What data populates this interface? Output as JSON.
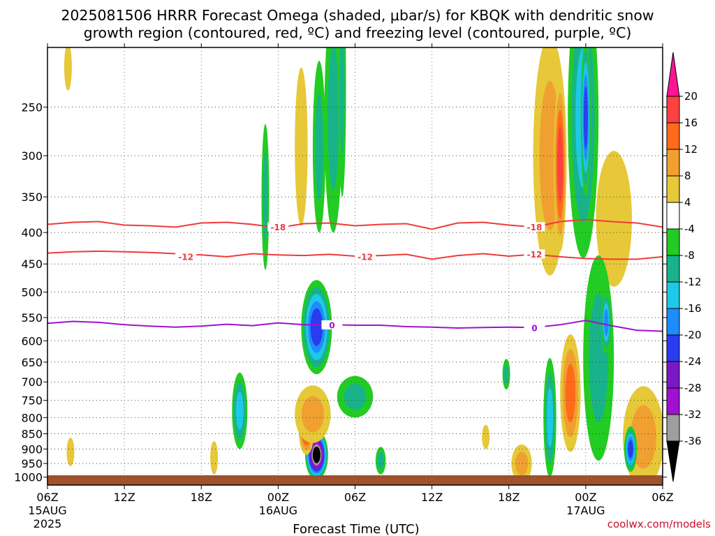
{
  "title": {
    "line1": "2025081506 HRRR Forecast Omega (shaded, μbar/s) for KBQK with dendritic snow",
    "line2": "growth region (contoured, red, ºC) and freezing level (contoured, purple, ºC)"
  },
  "credit": "coolwx.com/models",
  "chart_data": {
    "type": "heatmap",
    "x": {
      "label": "Forecast Time (UTC)",
      "range_hours": [
        0,
        48
      ],
      "ticks": [
        {
          "hour": 0,
          "label": "06Z",
          "date": "15AUG",
          "year": "2025"
        },
        {
          "hour": 6,
          "label": "12Z"
        },
        {
          "hour": 12,
          "label": "18Z"
        },
        {
          "hour": 18,
          "label": "00Z",
          "date": "16AUG"
        },
        {
          "hour": 24,
          "label": "06Z"
        },
        {
          "hour": 30,
          "label": "12Z"
        },
        {
          "hour": 36,
          "label": "18Z"
        },
        {
          "hour": 42,
          "label": "00Z",
          "date": "17AUG"
        },
        {
          "hour": 48,
          "label": "06Z"
        }
      ]
    },
    "y": {
      "label": "",
      "units": "hPa",
      "scale": "log",
      "range": [
        1030,
        200
      ],
      "ticks": [
        250,
        300,
        350,
        400,
        450,
        500,
        550,
        600,
        650,
        700,
        750,
        800,
        850,
        900,
        950,
        1000
      ]
    },
    "grid": true,
    "surface_ground_color": "#a0522d",
    "colorbar": {
      "labels": [
        "20",
        "16",
        "12",
        "8",
        "4",
        "-4",
        "-8",
        "-12",
        "-16",
        "-20",
        "-24",
        "-28",
        "-32",
        "-36"
      ],
      "colors": [
        "#ff1493",
        "#ff4040",
        "#ff6b1a",
        "#f0a030",
        "#e6c838",
        "#ffffff",
        "#22cc22",
        "#18b38a",
        "#1ec8e8",
        "#1e8cff",
        "#2a3cf0",
        "#7a18c8",
        "#a010d0",
        "#9e9e9e",
        "#000000"
      ]
    },
    "contours": [
      {
        "name": "-18",
        "color": "#ee3b3b",
        "points": [
          [
            0,
            388
          ],
          [
            2,
            385
          ],
          [
            4,
            384
          ],
          [
            6,
            389
          ],
          [
            8,
            390
          ],
          [
            10,
            392
          ],
          [
            12,
            386
          ],
          [
            14,
            385
          ],
          [
            16,
            388
          ],
          [
            18,
            393
          ],
          [
            20,
            387
          ],
          [
            22,
            386
          ],
          [
            24,
            390
          ],
          [
            26,
            388
          ],
          [
            28,
            387
          ],
          [
            30,
            395
          ],
          [
            32,
            386
          ],
          [
            34,
            385
          ],
          [
            36,
            389
          ],
          [
            38,
            392
          ],
          [
            40,
            384
          ],
          [
            42,
            381
          ],
          [
            44,
            384
          ],
          [
            46,
            386
          ],
          [
            48,
            392
          ]
        ],
        "labels": [
          {
            "hour": 18.0,
            "p": 392
          },
          {
            "hour": 38.0,
            "p": 392
          }
        ]
      },
      {
        "name": "-12",
        "color": "#ee3b3b",
        "points": [
          [
            0,
            432
          ],
          [
            2,
            430
          ],
          [
            4,
            429
          ],
          [
            6,
            430
          ],
          [
            8,
            431
          ],
          [
            10,
            433
          ],
          [
            12,
            435
          ],
          [
            14,
            438
          ],
          [
            16,
            433
          ],
          [
            18,
            435
          ],
          [
            20,
            436
          ],
          [
            22,
            434
          ],
          [
            24,
            437
          ],
          [
            26,
            436
          ],
          [
            28,
            434
          ],
          [
            30,
            442
          ],
          [
            32,
            436
          ],
          [
            34,
            433
          ],
          [
            36,
            437
          ],
          [
            38,
            434
          ],
          [
            40,
            438
          ],
          [
            42,
            441
          ],
          [
            44,
            442
          ],
          [
            46,
            442
          ],
          [
            48,
            438
          ]
        ],
        "labels": [
          {
            "hour": 10.8,
            "p": 438
          },
          {
            "hour": 24.8,
            "p": 438
          },
          {
            "hour": 38.0,
            "p": 434
          }
        ]
      },
      {
        "name": "0",
        "color": "#a010d0",
        "points": [
          [
            0,
            562
          ],
          [
            2,
            558
          ],
          [
            4,
            560
          ],
          [
            6,
            565
          ],
          [
            8,
            568
          ],
          [
            10,
            570
          ],
          [
            12,
            568
          ],
          [
            14,
            564
          ],
          [
            16,
            567
          ],
          [
            18,
            561
          ],
          [
            20,
            565
          ],
          [
            22,
            565
          ],
          [
            24,
            566
          ],
          [
            26,
            566
          ],
          [
            28,
            569
          ],
          [
            30,
            570
          ],
          [
            32,
            572
          ],
          [
            34,
            571
          ],
          [
            36,
            570
          ],
          [
            38,
            571
          ],
          [
            40,
            565
          ],
          [
            42,
            556
          ],
          [
            44,
            567
          ],
          [
            46,
            577
          ],
          [
            48,
            579
          ]
        ],
        "labels": [
          {
            "hour": 22.2,
            "p": 566
          },
          {
            "hour": 38.0,
            "p": 572
          }
        ]
      }
    ],
    "omega_features": [
      {
        "hour": 21.0,
        "p": 920,
        "rh": 0.9,
        "rp": 90,
        "value": -36
      },
      {
        "hour": 21.0,
        "p": 570,
        "rh": 1.2,
        "rp": 110,
        "value": -20
      },
      {
        "hour": 20.2,
        "p": 840,
        "rh": 0.6,
        "rp": 80,
        "value": 16
      },
      {
        "hour": 20.7,
        "p": 790,
        "rh": 1.4,
        "rp": 90,
        "value": 8
      },
      {
        "hour": 22.3,
        "p": 260,
        "rh": 0.7,
        "rp": 140,
        "value": -8
      },
      {
        "hour": 19.8,
        "p": 290,
        "rh": 0.5,
        "rp": 100,
        "value": 4
      },
      {
        "hour": 17.0,
        "p": 350,
        "rh": 0.3,
        "rp": 110,
        "value": -8
      },
      {
        "hour": 24.0,
        "p": 740,
        "rh": 1.4,
        "rp": 60,
        "value": -8
      },
      {
        "hour": 21.2,
        "p": 290,
        "rh": 0.5,
        "rp": 110,
        "value": -8
      },
      {
        "hour": 15.0,
        "p": 780,
        "rh": 0.6,
        "rp": 120,
        "value": -12
      },
      {
        "hour": 13.0,
        "p": 930,
        "rh": 0.3,
        "rp": 60,
        "value": 4
      },
      {
        "hour": 26.0,
        "p": 940,
        "rh": 0.4,
        "rp": 50,
        "value": -8
      },
      {
        "hour": 23.0,
        "p": 230,
        "rh": 0.3,
        "rp": 120,
        "value": -8
      },
      {
        "hour": 39.2,
        "p": 300,
        "rh": 1.3,
        "rp": 170,
        "value": 8
      },
      {
        "hour": 40.0,
        "p": 310,
        "rh": 0.5,
        "rp": 120,
        "value": 16
      },
      {
        "hour": 41.8,
        "p": 260,
        "rh": 1.2,
        "rp": 180,
        "value": -12
      },
      {
        "hour": 42.0,
        "p": 260,
        "rh": 0.4,
        "rp": 90,
        "value": -20
      },
      {
        "hour": 44.2,
        "p": 380,
        "rh": 1.4,
        "rp": 110,
        "value": 4
      },
      {
        "hour": 40.8,
        "p": 730,
        "rh": 0.8,
        "rp": 180,
        "value": 12
      },
      {
        "hour": 39.2,
        "p": 800,
        "rh": 0.5,
        "rp": 200,
        "value": -12
      },
      {
        "hour": 43.0,
        "p": 640,
        "rh": 1.2,
        "rp": 300,
        "value": -8
      },
      {
        "hour": 43.6,
        "p": 560,
        "rh": 0.4,
        "rp": 70,
        "value": -16
      },
      {
        "hour": 46.5,
        "p": 860,
        "rh": 1.6,
        "rp": 180,
        "value": 8
      },
      {
        "hour": 45.5,
        "p": 900,
        "rh": 0.5,
        "rp": 80,
        "value": -20
      },
      {
        "hour": 37.0,
        "p": 950,
        "rh": 0.8,
        "rp": 70,
        "value": 8
      },
      {
        "hour": 1.6,
        "p": 215,
        "rh": 0.3,
        "rp": 20,
        "value": 4
      },
      {
        "hour": 1.8,
        "p": 910,
        "rh": 0.3,
        "rp": 50,
        "value": 4
      },
      {
        "hour": 34.2,
        "p": 860,
        "rh": 0.3,
        "rp": 40,
        "value": 4
      },
      {
        "hour": 35.8,
        "p": 680,
        "rh": 0.3,
        "rp": 40,
        "value": -8
      }
    ]
  }
}
